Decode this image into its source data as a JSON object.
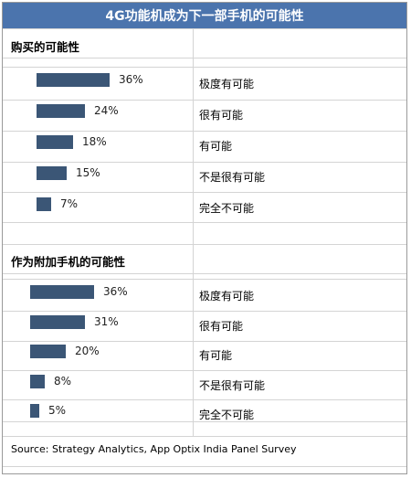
{
  "header": {
    "title": "4G功能机成为下一部手机的可能性"
  },
  "chart_data": [
    {
      "type": "bar",
      "title": "购买的可能性",
      "categories": [
        "极度有可能",
        "很有可能",
        "有可能",
        "不是很有可能",
        "完全不可能"
      ],
      "values": [
        36,
        24,
        18,
        15,
        7
      ],
      "value_labels": [
        "36%",
        "24%",
        "18%",
        "15%",
        "7%"
      ],
      "unit": "%",
      "bar_color": "#3b5676",
      "orientation": "horizontal",
      "grid": false,
      "legend": "none"
    },
    {
      "type": "bar",
      "title": "作为附加手机的可能性",
      "categories": [
        "极度有可能",
        "很有可能",
        "有可能",
        "不是很有可能",
        "完全不可能"
      ],
      "values": [
        36,
        31,
        20,
        8,
        5
      ],
      "value_labels": [
        "36%",
        "31%",
        "20%",
        "8%",
        "5%"
      ],
      "unit": "%",
      "bar_color": "#3b5676",
      "orientation": "horizontal",
      "grid": false,
      "legend": "none"
    }
  ],
  "footer": {
    "source": "Source: Strategy Analytics, App Optix India Panel Survey"
  },
  "colors": {
    "header_bg": "#4b74ad",
    "header_text": "#ffffff",
    "bar": "#3b5676",
    "grid": "#d4d4d4"
  }
}
